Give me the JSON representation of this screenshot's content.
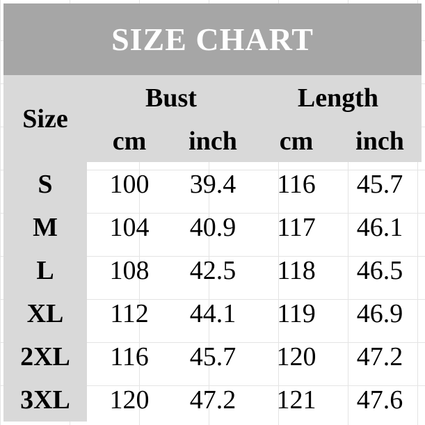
{
  "title": "SIZE CHART",
  "headers": {
    "size": "Size",
    "bust": "Bust",
    "length": "Length",
    "units": [
      "cm",
      "inch",
      "cm",
      "inch"
    ]
  },
  "colors": {
    "title_bg": "#a6a6a6",
    "header_bg": "#d9d9d9",
    "title_text": "#ffffff"
  },
  "chart_data": {
    "type": "table",
    "title": "SIZE CHART",
    "columns": [
      "Size",
      "Bust cm",
      "Bust inch",
      "Length cm",
      "Length inch"
    ],
    "rows": [
      [
        "S",
        "100",
        "39.4",
        "116",
        "45.7"
      ],
      [
        "M",
        "104",
        "40.9",
        "117",
        "46.1"
      ],
      [
        "L",
        "108",
        "42.5",
        "118",
        "46.5"
      ],
      [
        "XL",
        "112",
        "44.1",
        "119",
        "46.9"
      ],
      [
        "2XL",
        "116",
        "45.7",
        "120",
        "47.2"
      ],
      [
        "3XL",
        "120",
        "47.2",
        "121",
        "47.6"
      ]
    ]
  }
}
